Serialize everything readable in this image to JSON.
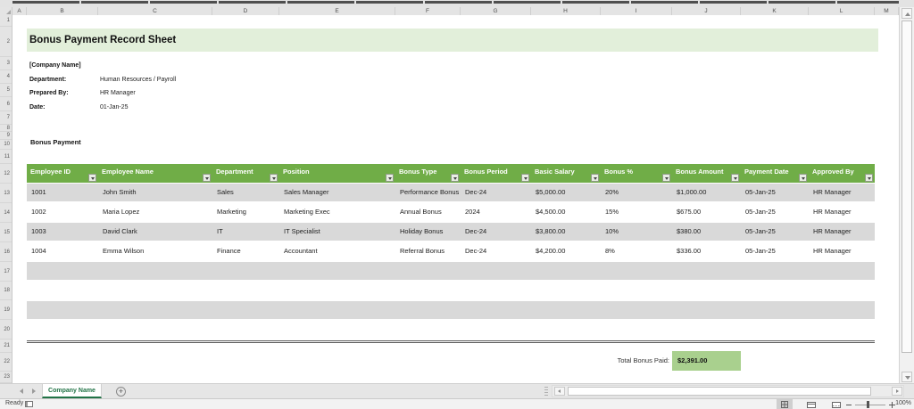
{
  "window": {
    "status_ready": "Ready",
    "zoom_level": "100%"
  },
  "grid": {
    "columns": [
      "A",
      "B",
      "C",
      "D",
      "E",
      "F",
      "G",
      "H",
      "I",
      "J",
      "K",
      "L",
      "M"
    ],
    "rows": [
      "1",
      "2",
      "3",
      "4",
      "5",
      "6",
      "7",
      "8",
      "9",
      "10",
      "11",
      "12",
      "13",
      "14",
      "15",
      "16",
      "17",
      "18",
      "19",
      "20",
      "21",
      "22",
      "23"
    ]
  },
  "document": {
    "title": "Bonus Payment Record Sheet",
    "company": "[Company Name]",
    "fields": [
      {
        "label": "Department:",
        "value": "Human Resources / Payroll"
      },
      {
        "label": "Prepared By:",
        "value": "HR Manager"
      },
      {
        "label": "Date:",
        "value": "01-Jan-25"
      }
    ],
    "section": "Bonus Payment"
  },
  "table": {
    "headers": [
      "Employee ID",
      "Employee Name",
      "Department",
      "Position",
      "Bonus Type",
      "Bonus Period",
      "Basic Salary",
      "Bonus %",
      "Bonus Amount",
      "Payment Date",
      "Approved By"
    ],
    "rows": [
      [
        "1001",
        "John Smith",
        "Sales",
        "Sales Manager",
        "Performance Bonus",
        "Dec-24",
        "$5,000.00",
        "20%",
        "$1,000.00",
        "05-Jan-25",
        "HR Manager"
      ],
      [
        "1002",
        "Maria Lopez",
        "Marketing",
        "Marketing Exec",
        "Annual Bonus",
        "2024",
        "$4,500.00",
        "15%",
        "$675.00",
        "05-Jan-25",
        "HR Manager"
      ],
      [
        "1003",
        "David Clark",
        "IT",
        "IT Specialist",
        "Holiday Bonus",
        "Dec-24",
        "$3,800.00",
        "10%",
        "$380.00",
        "05-Jan-25",
        "HR Manager"
      ],
      [
        "1004",
        "Emma Wilson",
        "Finance",
        "Accountant",
        "Referral Bonus",
        "Dec-24",
        "$4,200.00",
        "8%",
        "$336.00",
        "05-Jan-25",
        "HR Manager"
      ]
    ],
    "empty_row_count": 4
  },
  "summary": {
    "label": "Total Bonus Paid:",
    "value": "$2,391.00"
  },
  "tabs": {
    "active": "Company Name"
  },
  "colors": {
    "table_header_green": "#70ad47",
    "title_band_green": "#e2efda",
    "band_row_gray": "#d9d9d9",
    "total_cell_green": "#a9d08e",
    "tab_green": "#217346"
  }
}
